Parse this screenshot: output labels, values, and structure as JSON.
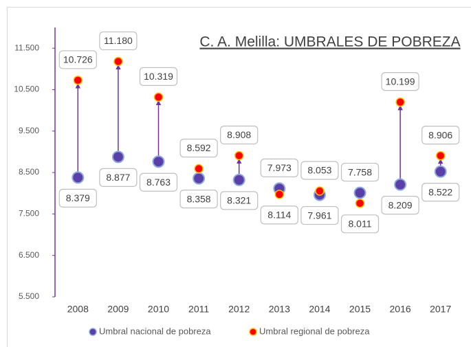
{
  "chart_data": {
    "type": "dot-arrow",
    "title": "C. A. Melilla: UMBRALES DE POBREZA",
    "categories": [
      "2008",
      "2009",
      "2010",
      "2011",
      "2012",
      "2013",
      "2014",
      "2015",
      "2016",
      "2017"
    ],
    "series": [
      {
        "name": "Umbral nacional de pobreza",
        "color": "#5b3fa8",
        "values": [
          8379,
          8877,
          8763,
          8358,
          8321,
          8114,
          7961,
          8011,
          8209,
          8522
        ],
        "value_labels": [
          "8.379",
          "8.877",
          "8.763",
          "8.358",
          "8.321",
          "8.114",
          "7.961",
          "8.011",
          "8.209",
          "8.522"
        ]
      },
      {
        "name": "Umbral regional de pobreza",
        "color": "#ff0000",
        "values": [
          10726,
          11180,
          10319,
          8592,
          8908,
          7973,
          8053,
          7758,
          10199,
          8906
        ],
        "value_labels": [
          "10.726",
          "11.180",
          "10.319",
          "8.592",
          "8.908",
          "7.973",
          "8.053",
          "7.758",
          "10.199",
          "8.906"
        ]
      }
    ],
    "arrow_color": "#7030a0",
    "ylim": [
      5500,
      12000
    ],
    "yticks": [
      {
        "value": 5500,
        "label": "5.500"
      },
      {
        "value": 6500,
        "label": "6.500"
      },
      {
        "value": 7500,
        "label": "7.500"
      },
      {
        "value": 8500,
        "label": "8.500"
      },
      {
        "value": 9500,
        "label": "9.500"
      },
      {
        "value": 10500,
        "label": "10.500"
      },
      {
        "value": 11500,
        "label": "11.500"
      }
    ],
    "legend": "bottom"
  }
}
